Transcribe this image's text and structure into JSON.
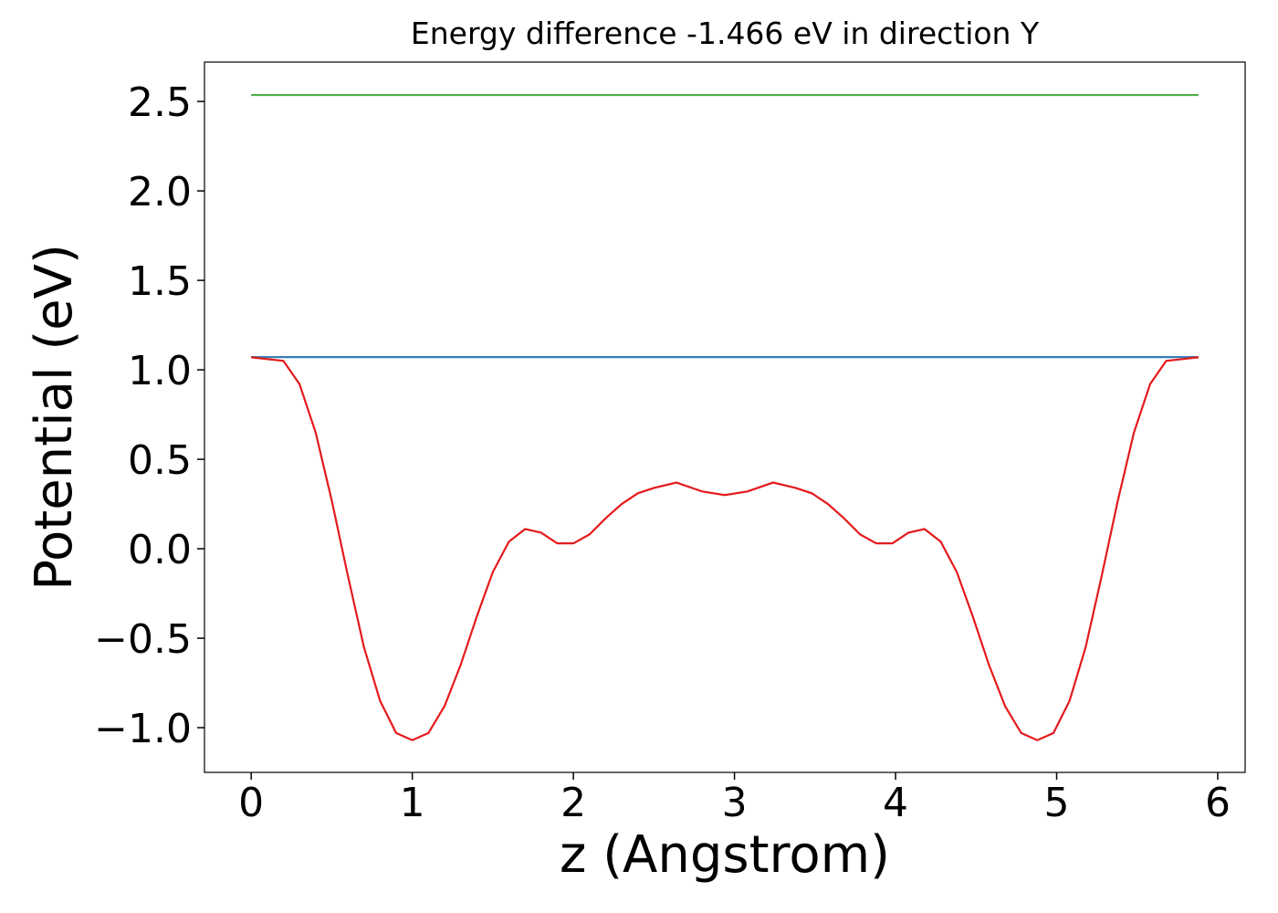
{
  "chart_data": {
    "type": "line",
    "title": "Energy difference -1.466 eV in direction Y",
    "x_label": "z (Angstrom)",
    "y_label": "Potential (eV)",
    "xlim": [
      -0.29,
      6.17
    ],
    "ylim": [
      -1.25,
      2.72
    ],
    "xticks": [
      0,
      1,
      2,
      3,
      4,
      5,
      6
    ],
    "yticks": [
      {
        "value": -1.0,
        "label": "−1.0"
      },
      {
        "value": -0.5,
        "label": "−0.5"
      },
      {
        "value": 0.0,
        "label": "0.0"
      },
      {
        "value": 0.5,
        "label": "0.5"
      },
      {
        "value": 1.0,
        "label": "1.0"
      },
      {
        "value": 1.5,
        "label": "1.5"
      },
      {
        "value": 2.0,
        "label": "2.0"
      },
      {
        "value": 2.5,
        "label": "2.5"
      }
    ],
    "series": [
      {
        "color": "#4daf4a",
        "x": [
          0,
          5.88
        ],
        "values": [
          2.536,
          2.536
        ]
      },
      {
        "color": "#377eb8",
        "x": [
          0,
          5.88
        ],
        "values": [
          1.071,
          1.071
        ]
      },
      {
        "color": "#e41a1c",
        "x": [
          0,
          0.1,
          0.2,
          0.3,
          0.4,
          0.5,
          0.6,
          0.7,
          0.8,
          0.9,
          1.0,
          1.1,
          1.2,
          1.3,
          1.4,
          1.5,
          1.6,
          1.7,
          1.8,
          1.9,
          2.0,
          2.1,
          2.2,
          2.3,
          2.4,
          2.5,
          2.64,
          2.8,
          2.94,
          3.08,
          3.24,
          3.38,
          3.48,
          3.58,
          3.68,
          3.78,
          3.88,
          3.98,
          4.08,
          4.18,
          4.28,
          4.38,
          4.48,
          4.58,
          4.68,
          4.78,
          4.88,
          4.98,
          5.08,
          5.18,
          5.28,
          5.38,
          5.48,
          5.58,
          5.68,
          5.78,
          5.88
        ],
        "values": [
          1.07,
          1.06,
          1.05,
          0.92,
          0.65,
          0.27,
          -0.15,
          -0.55,
          -0.85,
          -1.03,
          -1.07,
          -1.03,
          -0.88,
          -0.65,
          -0.38,
          -0.13,
          0.04,
          0.11,
          0.09,
          0.03,
          0.03,
          0.08,
          0.17,
          0.25,
          0.31,
          0.34,
          0.37,
          0.32,
          0.3,
          0.32,
          0.37,
          0.34,
          0.31,
          0.25,
          0.17,
          0.08,
          0.03,
          0.03,
          0.09,
          0.11,
          0.04,
          -0.13,
          -0.38,
          -0.65,
          -0.88,
          -1.03,
          -1.07,
          -1.03,
          -0.85,
          -0.55,
          -0.15,
          0.27,
          0.65,
          0.92,
          1.05,
          1.06,
          1.07
        ]
      }
    ]
  }
}
